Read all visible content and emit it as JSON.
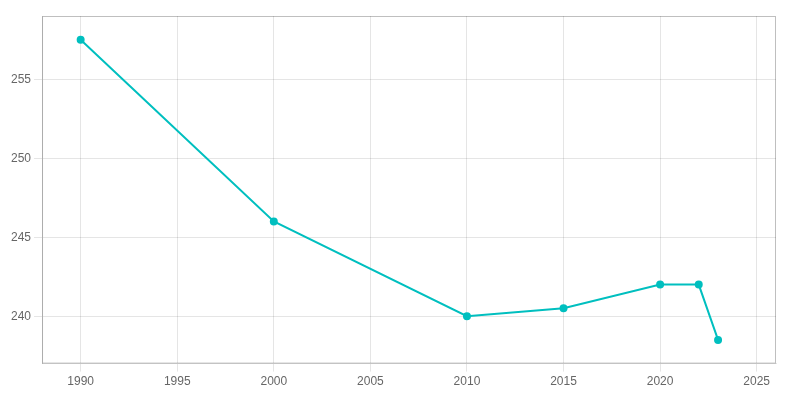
{
  "chart_data": {
    "type": "line",
    "x": [
      1990,
      2000,
      2010,
      2015,
      2020,
      2022,
      2023
    ],
    "values": [
      257.5,
      246.0,
      240.0,
      240.5,
      242.0,
      242.0,
      238.5
    ],
    "color": "#00BFBF",
    "marker": "circle",
    "xlim": [
      1988,
      2026
    ],
    "ylim": [
      237,
      259
    ],
    "xticks": [
      1990,
      1995,
      2000,
      2005,
      2010,
      2015,
      2020,
      2025
    ],
    "yticks": [
      240,
      245,
      250,
      255
    ],
    "grid": true
  }
}
